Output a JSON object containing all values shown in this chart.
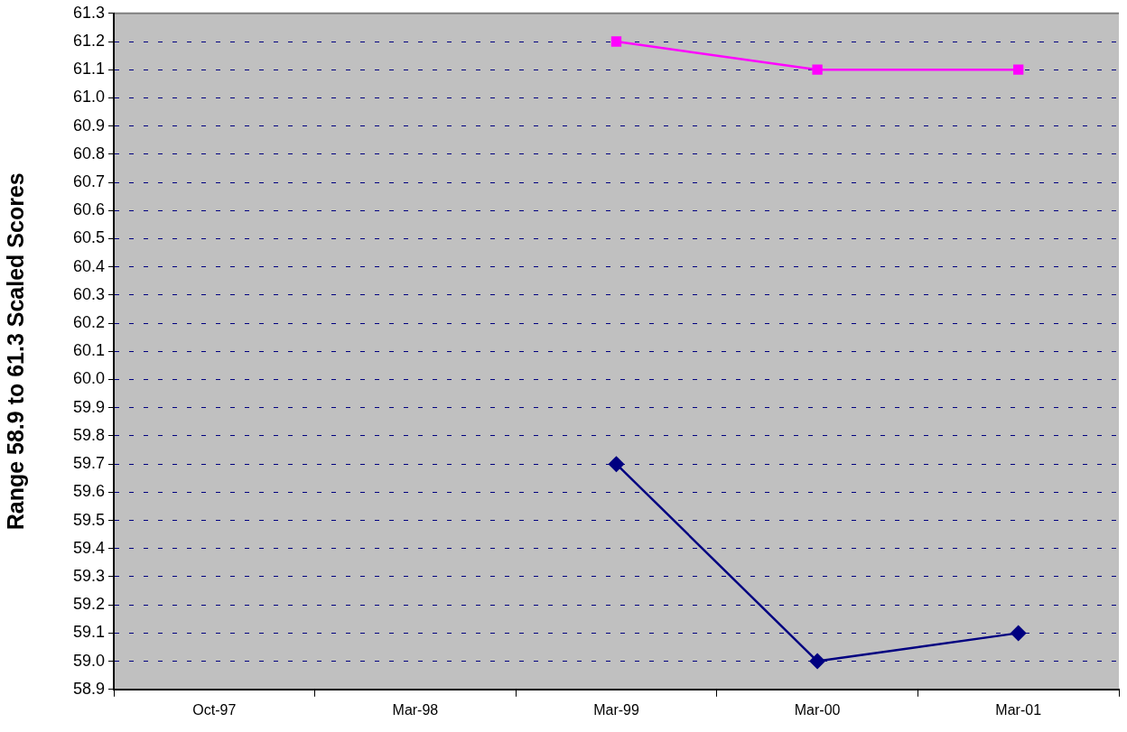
{
  "chart_data": {
    "type": "line",
    "ylabel": "Range 58.9 to 61.3 Scaled Scores",
    "categories": [
      "Oct-97",
      "Mar-98",
      "Mar-99",
      "Mar-00",
      "Mar-01"
    ],
    "series": [
      {
        "color": "#000080",
        "marker": "diamond",
        "values": [
          null,
          null,
          59.7,
          59.0,
          59.1
        ]
      },
      {
        "color": "#ff00ff",
        "marker": "square",
        "values": [
          null,
          null,
          61.2,
          61.1,
          61.1
        ]
      }
    ],
    "ylim": [
      58.9,
      61.3
    ],
    "yticks": [
      58.9,
      {
        "value": 59.0,
        "label": "59.0"
      },
      59.1,
      59.2,
      59.3,
      59.4,
      59.5,
      59.6,
      59.7,
      59.8,
      59.9,
      {
        "value": 60.0,
        "label": "60.0"
      },
      60.1,
      60.2,
      60.3,
      60.4,
      60.5,
      60.6,
      60.7,
      60.8,
      60.9,
      {
        "value": 61.0,
        "label": "61.0"
      },
      61.1,
      61.2,
      61.3
    ],
    "grid": "y",
    "legend": false,
    "line_style": "solid"
  }
}
